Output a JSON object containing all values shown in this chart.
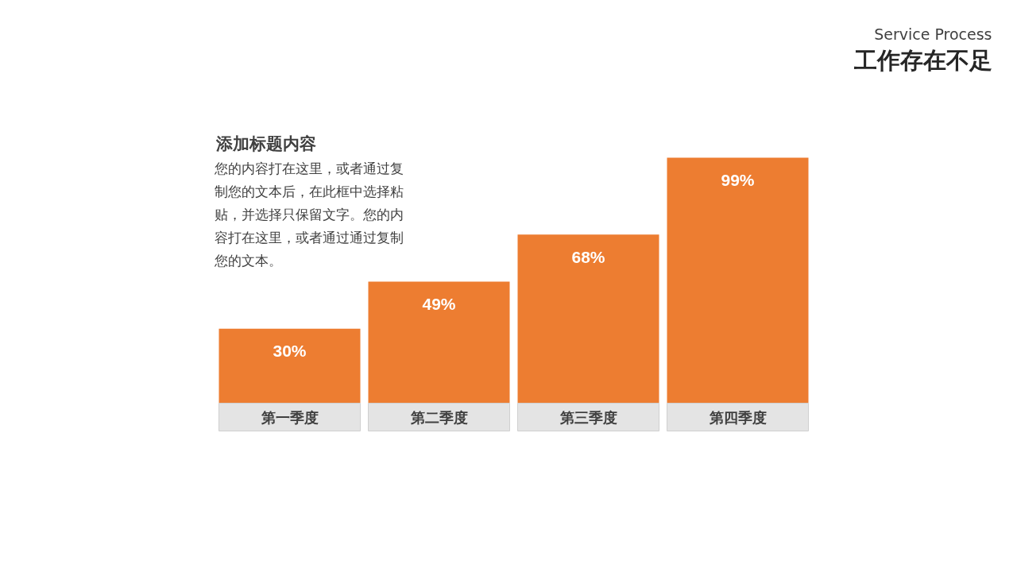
{
  "chart_data": {
    "type": "bar",
    "title": "工作存在不足",
    "subtitle": "Service Process",
    "categories": [
      "第一季度",
      "第二季度",
      "第三季度",
      "第四季度"
    ],
    "values": [
      30,
      49,
      68,
      99
    ],
    "value_labels": [
      "30%",
      "49%",
      "68%",
      "99%"
    ],
    "color": "#ed7d31",
    "tick_labels": "x",
    "grid": false,
    "annotations": [
      "添加标题内容",
      "您的内容打在这里，或者通过复制您的文本后，在此框中选择粘贴，并选择只保留文字。您的内容打在这里，或者通过通过复制您的文本。"
    ]
  }
}
